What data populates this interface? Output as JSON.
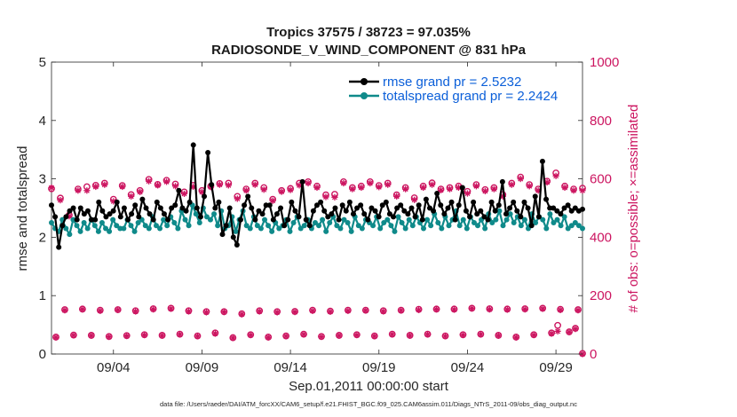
{
  "chart_data": {
    "type": "line",
    "title": "Tropics 37575 / 38723 = 97.035%",
    "subtitle": "RADIOSONDE_V_WIND_COMPONENT @ 831 hPa",
    "xlabel": "Sep.01,2011 00:00:00 start",
    "ylabel_left": "rmse and totalspread",
    "ylabel_right": "# of obs: o=possible; ×=assimilated",
    "footnote": "data file: /Users/raeder/DAI/ATM_forcXX/CAM6_setup/f.e21.FHIST_BGC.f09_025.CAM6assim.011/Diags_NTrS_2011-09/obs_diag_output.nc",
    "x_range_days": [
      0,
      30
    ],
    "x_ticks": [
      {
        "day": 3.5,
        "label": "09/04"
      },
      {
        "day": 8.5,
        "label": "09/09"
      },
      {
        "day": 13.5,
        "label": "09/14"
      },
      {
        "day": 18.5,
        "label": "09/19"
      },
      {
        "day": 23.5,
        "label": "09/24"
      },
      {
        "day": 28.5,
        "label": "09/29"
      }
    ],
    "ylim_left": [
      0,
      5
    ],
    "yticks_left": [
      "0",
      "1",
      "2",
      "3",
      "4",
      "5"
    ],
    "ylim_right": [
      0,
      1000
    ],
    "yticks_right": [
      "0",
      "200",
      "400",
      "600",
      "800",
      "1000"
    ],
    "legend": [
      "rmse grand pr = 2.5232",
      "totalspread grand pr = 2.2424"
    ],
    "colors": {
      "rmse": "#000000",
      "spread": "#0f8a8a",
      "obs": "#cc1560",
      "legend_text": "#0b5fd9"
    },
    "series": [
      {
        "name": "rmse",
        "values": [
          2.55,
          2.35,
          1.83,
          2.2,
          2.35,
          2.45,
          2.5,
          2.3,
          2.5,
          2.4,
          2.45,
          2.3,
          2.3,
          2.6,
          2.45,
          2.35,
          2.4,
          2.45,
          2.6,
          2.35,
          2.5,
          2.3,
          2.4,
          2.55,
          2.35,
          2.65,
          2.5,
          2.4,
          2.3,
          2.6,
          2.5,
          2.4,
          2.3,
          2.5,
          2.55,
          2.8,
          2.5,
          2.45,
          2.6,
          3.58,
          2.5,
          2.35,
          2.7,
          3.45,
          2.9,
          2.5,
          2.6,
          2.05,
          2.2,
          2.5,
          2.0,
          1.87,
          2.3,
          2.55,
          2.7,
          2.5,
          2.3,
          2.45,
          2.4,
          2.55,
          2.55,
          2.3,
          2.4,
          2.5,
          2.2,
          2.3,
          2.6,
          2.45,
          2.35,
          2.95,
          2.3,
          2.2,
          2.45,
          2.55,
          2.6,
          2.45,
          2.35,
          2.4,
          2.5,
          2.3,
          2.55,
          2.45,
          2.6,
          2.4,
          2.5,
          2.55,
          2.4,
          2.3,
          2.5,
          2.45,
          2.35,
          2.55,
          2.6,
          2.4,
          2.35,
          2.5,
          2.55,
          2.45,
          2.4,
          2.5,
          2.35,
          2.55,
          2.3,
          2.65,
          2.5,
          2.45,
          2.75,
          2.55,
          2.4,
          2.5,
          2.6,
          2.3,
          2.55,
          2.85,
          2.45,
          2.35,
          2.6,
          2.4,
          2.45,
          2.35,
          2.3,
          2.6,
          2.45,
          2.55,
          2.95,
          2.4,
          2.5,
          2.6,
          2.45,
          2.35,
          2.6,
          2.5,
          2.2,
          2.7,
          2.35,
          3.3,
          2.65,
          2.5,
          2.5,
          2.45,
          2.4,
          2.5,
          2.55,
          2.45,
          2.5,
          2.45,
          2.48
        ]
      },
      {
        "name": "totalspread",
        "values": [
          2.25,
          2.15,
          2.1,
          2.3,
          2.15,
          2.05,
          2.3,
          2.2,
          2.1,
          2.25,
          2.15,
          2.3,
          2.2,
          2.1,
          2.25,
          2.15,
          2.1,
          2.3,
          2.2,
          2.15,
          2.15,
          2.3,
          2.2,
          2.1,
          2.25,
          2.3,
          2.2,
          2.15,
          2.35,
          2.2,
          2.15,
          2.3,
          2.2,
          2.35,
          2.25,
          2.15,
          2.45,
          2.3,
          2.2,
          2.55,
          2.4,
          2.25,
          2.5,
          2.35,
          2.3,
          2.4,
          2.2,
          2.45,
          2.15,
          2.2,
          2.35,
          2.1,
          2.3,
          2.45,
          2.2,
          2.15,
          2.35,
          2.2,
          2.15,
          2.3,
          2.2,
          2.1,
          2.25,
          2.15,
          2.2,
          2.3,
          2.1,
          2.25,
          2.35,
          2.15,
          2.2,
          2.3,
          2.15,
          2.25,
          2.2,
          2.3,
          2.1,
          2.25,
          2.35,
          2.2,
          2.15,
          2.3,
          2.25,
          2.1,
          2.35,
          2.2,
          2.15,
          2.3,
          2.25,
          2.2,
          2.35,
          2.15,
          2.25,
          2.3,
          2.2,
          2.1,
          2.35,
          2.25,
          2.15,
          2.3,
          2.2,
          2.35,
          2.25,
          2.15,
          2.3,
          2.2,
          2.4,
          2.25,
          2.15,
          2.35,
          2.2,
          2.3,
          2.45,
          2.2,
          2.3,
          2.15,
          2.35,
          2.25,
          2.2,
          2.3,
          2.15,
          2.4,
          2.25,
          2.3,
          2.45,
          2.2,
          2.3,
          2.4,
          2.25,
          2.35,
          2.2,
          2.3,
          2.15,
          2.4,
          2.25,
          2.35,
          2.3,
          2.15,
          2.4,
          2.25,
          2.3,
          2.2,
          2.35,
          2.15,
          2.2,
          2.25,
          2.2,
          2.15
        ]
      }
    ],
    "obs_counts_00z": {
      "days": [
        0,
        1,
        2,
        3,
        4,
        5,
        6,
        7,
        8,
        9,
        10,
        11,
        12,
        13,
        14,
        15,
        16,
        17,
        18,
        19,
        20,
        21,
        22,
        23,
        24,
        25,
        26,
        27,
        28,
        29,
        30
      ],
      "possible": [
        566,
        476,
        573,
        585,
        577,
        560,
        581,
        582,
        578,
        575,
        585,
        565,
        570,
        560,
        585,
        575,
        547,
        570,
        590,
        585,
        570,
        575,
        565,
        575,
        580,
        570,
        585,
        580,
        592,
        575,
        568
      ],
      "assimilated": [
        570,
        472,
        560,
        580,
        573,
        555,
        578,
        575,
        573,
        572,
        578,
        560,
        563,
        556,
        578,
        570,
        537,
        565,
        585,
        580,
        565,
        570,
        561,
        570,
        575,
        565,
        580,
        575,
        588,
        570,
        560
      ]
    },
    "obs_counts_12z": {
      "days": [
        0.5,
        1.5,
        2.5,
        3.5,
        4.5,
        5.5,
        6.5,
        7.5,
        8.5,
        9.5,
        10.5,
        11.5,
        12.5,
        13.5,
        14.5,
        15.5,
        16.5,
        17.5,
        18.5,
        19.5,
        20.5,
        21.5,
        22.5,
        23.5,
        24.5,
        25.5,
        26.5,
        27.5,
        28.5,
        29.5
      ],
      "possible": [
        534,
        565,
        578,
        530,
        546,
        598,
        595,
        555,
        560,
        584,
        540,
        585,
        530,
        567,
        590,
        545,
        590,
        575,
        577,
        545,
        535,
        586,
        570,
        557,
        563,
        546,
        606,
        565,
        620,
        565
      ],
      "assimilated": [
        527,
        560,
        573,
        523,
        540,
        592,
        590,
        549,
        555,
        580,
        532,
        580,
        525,
        562,
        585,
        538,
        585,
        570,
        572,
        540,
        528,
        580,
        565,
        550,
        558,
        540,
        600,
        560,
        610,
        560
      ]
    },
    "obs_counts_06z": {
      "days": [
        0.25,
        1.25,
        2.25,
        3.25,
        4.25,
        5.25,
        6.25,
        7.25,
        8.25,
        9.25,
        10.25,
        11.25,
        12.25,
        13.25,
        14.25,
        15.25,
        16.25,
        17.25,
        18.25,
        19.25,
        20.25,
        21.25,
        22.25,
        23.25,
        24.25,
        25.25,
        26.25,
        27.25,
        28.25,
        29.25
      ],
      "possible": [
        58,
        65,
        64,
        60,
        63,
        66,
        64,
        68,
        62,
        72,
        56,
        66,
        58,
        62,
        68,
        60,
        64,
        66,
        62,
        68,
        64,
        68,
        62,
        66,
        68,
        64,
        58,
        66,
        72,
        76
      ],
      "assimilated": [
        57,
        64,
        63,
        59,
        62,
        65,
        63,
        67,
        61,
        70,
        55,
        65,
        57,
        61,
        67,
        59,
        63,
        65,
        61,
        67,
        63,
        67,
        61,
        65,
        67,
        63,
        57,
        65,
        70,
        75
      ]
    },
    "obs_counts_18z": {
      "days": [
        0.75,
        1.75,
        2.75,
        3.75,
        4.75,
        5.75,
        6.75,
        7.75,
        8.75,
        9.75,
        10.75,
        11.75,
        12.75,
        13.75,
        14.75,
        15.75,
        16.75,
        17.75,
        18.75,
        19.75,
        20.75,
        21.75,
        22.75,
        23.75,
        24.75,
        25.75,
        26.75,
        27.75,
        28.75,
        29.75
      ],
      "possible": [
        152,
        154,
        150,
        152,
        148,
        155,
        157,
        148,
        145,
        145,
        138,
        148,
        145,
        146,
        150,
        147,
        150,
        150,
        148,
        150,
        153,
        154,
        154,
        157,
        155,
        154,
        155,
        157,
        153,
        152
      ],
      "assimilated": [
        150,
        153,
        148,
        151,
        146,
        153,
        155,
        146,
        143,
        144,
        136,
        146,
        143,
        144,
        148,
        145,
        148,
        149,
        146,
        149,
        151,
        153,
        152,
        156,
        153,
        152,
        153,
        155,
        151,
        150
      ]
    },
    "obs_extra_points": [
      {
        "day": 28.6,
        "possible": 98,
        "assimilated": 78
      },
      {
        "day": 29.6,
        "possible": 88,
        "assimilated": 86
      },
      {
        "day": 30.0,
        "possible": 2,
        "assimilated": 0
      }
    ]
  }
}
